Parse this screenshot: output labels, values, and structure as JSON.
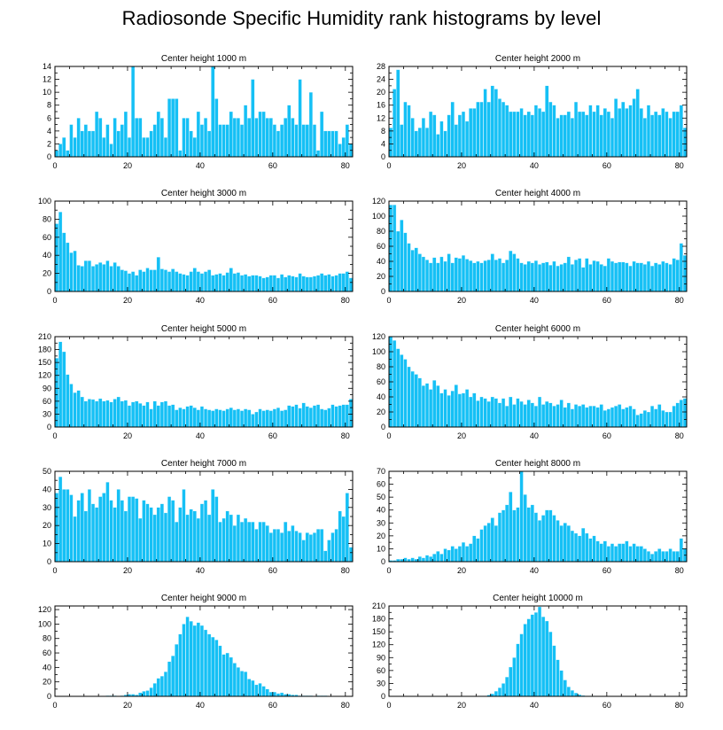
{
  "title": "Radiosonde Specific Humidity rank histograms by level",
  "colors": {
    "bar": "#15c0f5",
    "bar_edge": "#e8f8ff",
    "axis": "#000000"
  },
  "chart_data": [
    {
      "type": "bar",
      "title": "Center height 1000 m",
      "xlim": [
        0,
        82
      ],
      "ylim": [
        0,
        14
      ],
      "xticks": [
        0,
        20,
        40,
        60,
        80
      ],
      "yticks": [
        0,
        2,
        4,
        6,
        8,
        10,
        12,
        14
      ],
      "values": [
        1,
        2,
        3,
        1,
        5,
        3,
        6,
        4,
        5,
        4,
        4,
        7,
        6,
        3,
        5,
        2,
        6,
        4,
        5,
        7,
        3,
        14,
        6,
        6,
        3,
        3,
        4,
        5,
        7,
        6,
        3,
        9,
        9,
        9,
        1,
        6,
        6,
        4,
        3,
        7,
        5,
        6,
        4,
        14,
        9,
        5,
        5,
        5,
        7,
        6,
        6,
        5,
        8,
        6,
        12,
        6,
        7,
        7,
        6,
        6,
        5,
        4,
        5,
        6,
        8,
        6,
        5,
        12,
        5,
        5,
        10,
        5,
        1,
        7,
        4,
        4,
        4,
        4,
        2,
        3,
        5,
        2
      ]
    },
    {
      "type": "bar",
      "title": "Center height 2000 m",
      "xlim": [
        0,
        82
      ],
      "ylim": [
        0,
        28
      ],
      "xticks": [
        0,
        20,
        40,
        60,
        80
      ],
      "yticks": [
        0,
        4,
        8,
        12,
        16,
        20,
        24,
        28
      ],
      "values": [
        9,
        21,
        27,
        10,
        17,
        16,
        12,
        8,
        9,
        12,
        9,
        14,
        13,
        7,
        11,
        8,
        13,
        17,
        10,
        13,
        14,
        11,
        15,
        15,
        17,
        17,
        21,
        17,
        22,
        21,
        18,
        17,
        16,
        14,
        14,
        14,
        15,
        13,
        14,
        13,
        16,
        15,
        14,
        22,
        17,
        16,
        12,
        13,
        13,
        14,
        12,
        17,
        14,
        14,
        13,
        16,
        14,
        16,
        13,
        15,
        14,
        12,
        18,
        15,
        17,
        15,
        16,
        18,
        21,
        15,
        12,
        16,
        13,
        14,
        13,
        15,
        14,
        12,
        14,
        14,
        16,
        9
      ]
    },
    {
      "type": "bar",
      "title": "Center height 3000 m",
      "xlim": [
        0,
        82
      ],
      "ylim": [
        0,
        100
      ],
      "xticks": [
        0,
        20,
        40,
        60,
        80
      ],
      "yticks": [
        0,
        20,
        40,
        60,
        80,
        100
      ],
      "values": [
        75,
        88,
        65,
        54,
        43,
        45,
        29,
        28,
        34,
        34,
        28,
        30,
        32,
        30,
        34,
        28,
        32,
        28,
        24,
        23,
        20,
        22,
        18,
        24,
        22,
        26,
        24,
        24,
        38,
        25,
        24,
        22,
        25,
        22,
        20,
        19,
        18,
        22,
        26,
        22,
        20,
        22,
        24,
        18,
        19,
        20,
        18,
        21,
        26,
        20,
        21,
        18,
        19,
        17,
        18,
        18,
        17,
        15,
        16,
        18,
        18,
        15,
        19,
        16,
        18,
        17,
        16,
        20,
        17,
        16,
        16,
        17,
        18,
        20,
        18,
        19,
        17,
        18,
        20,
        20,
        22,
        15
      ]
    },
    {
      "type": "bar",
      "title": "Center height 4000 m",
      "xlim": [
        0,
        82
      ],
      "ylim": [
        0,
        120
      ],
      "xticks": [
        0,
        20,
        40,
        60,
        80
      ],
      "yticks": [
        0,
        20,
        40,
        60,
        80,
        100,
        120
      ],
      "values": [
        115,
        115,
        80,
        95,
        78,
        64,
        55,
        58,
        50,
        46,
        42,
        38,
        45,
        38,
        46,
        40,
        50,
        38,
        45,
        44,
        48,
        43,
        41,
        38,
        40,
        38,
        41,
        42,
        50,
        42,
        44,
        38,
        42,
        54,
        50,
        44,
        38,
        36,
        40,
        38,
        41,
        36,
        38,
        39,
        35,
        40,
        34,
        36,
        38,
        46,
        36,
        42,
        44,
        32,
        44,
        36,
        41,
        40,
        36,
        34,
        44,
        40,
        38,
        39,
        39,
        38,
        34,
        40,
        38,
        38,
        36,
        40,
        34,
        38,
        36,
        40,
        38,
        36,
        44,
        42,
        64,
        48
      ]
    },
    {
      "type": "bar",
      "title": "Center height 5000 m",
      "xlim": [
        0,
        82
      ],
      "ylim": [
        0,
        210
      ],
      "xticks": [
        0,
        20,
        40,
        60,
        80
      ],
      "yticks": [
        0,
        30,
        60,
        90,
        120,
        150,
        180,
        210
      ],
      "values": [
        160,
        198,
        175,
        122,
        100,
        80,
        85,
        70,
        60,
        65,
        64,
        60,
        66,
        60,
        62,
        58,
        65,
        70,
        60,
        62,
        50,
        58,
        60,
        55,
        50,
        58,
        42,
        60,
        50,
        58,
        60,
        50,
        52,
        40,
        45,
        42,
        48,
        50,
        45,
        40,
        48,
        42,
        40,
        38,
        42,
        40,
        38,
        42,
        45,
        40,
        42,
        38,
        42,
        40,
        30,
        35,
        42,
        38,
        40,
        38,
        42,
        45,
        38,
        40,
        50,
        48,
        52,
        44,
        56,
        48,
        45,
        50,
        52,
        42,
        40,
        44,
        52,
        48,
        50,
        52,
        52,
        65
      ]
    },
    {
      "type": "bar",
      "title": "Center height 6000 m",
      "xlim": [
        0,
        82
      ],
      "ylim": [
        0,
        120
      ],
      "xticks": [
        0,
        20,
        40,
        60,
        80
      ],
      "yticks": [
        0,
        20,
        40,
        60,
        80,
        100,
        120
      ],
      "values": [
        120,
        115,
        104,
        96,
        90,
        80,
        74,
        70,
        65,
        55,
        58,
        50,
        62,
        55,
        45,
        50,
        42,
        48,
        56,
        44,
        45,
        50,
        40,
        45,
        35,
        40,
        38,
        34,
        40,
        38,
        32,
        38,
        28,
        40,
        30,
        38,
        34,
        30,
        36,
        32,
        28,
        40,
        30,
        34,
        32,
        28,
        30,
        36,
        26,
        32,
        24,
        30,
        28,
        30,
        26,
        28,
        28,
        26,
        30,
        22,
        24,
        26,
        28,
        30,
        24,
        26,
        28,
        24,
        16,
        18,
        22,
        20,
        28,
        24,
        30,
        22,
        20,
        20,
        28,
        32,
        36,
        38
      ]
    },
    {
      "type": "bar",
      "title": "Center height 7000 m",
      "xlim": [
        0,
        82
      ],
      "ylim": [
        0,
        50
      ],
      "xticks": [
        0,
        20,
        40,
        60,
        80
      ],
      "yticks": [
        0,
        10,
        20,
        30,
        40,
        50
      ],
      "values": [
        38,
        47,
        40,
        40,
        37,
        25,
        34,
        38,
        28,
        40,
        32,
        30,
        36,
        38,
        44,
        34,
        30,
        40,
        34,
        28,
        36,
        36,
        35,
        24,
        34,
        32,
        30,
        26,
        30,
        32,
        27,
        36,
        34,
        22,
        30,
        40,
        26,
        29,
        28,
        24,
        32,
        34,
        26,
        40,
        36,
        22,
        24,
        28,
        26,
        20,
        26,
        22,
        24,
        22,
        22,
        18,
        22,
        22,
        20,
        16,
        18,
        18,
        16,
        22,
        17,
        20,
        17,
        16,
        12,
        16,
        15,
        16,
        18,
        18,
        6,
        12,
        16,
        18,
        28,
        25,
        38,
        8
      ]
    },
    {
      "type": "bar",
      "title": "Center height 8000 m",
      "xlim": [
        0,
        82
      ],
      "ylim": [
        0,
        70
      ],
      "xticks": [
        0,
        20,
        40,
        60,
        80
      ],
      "yticks": [
        0,
        10,
        20,
        30,
        40,
        50,
        60,
        70
      ],
      "values": [
        1,
        1,
        2,
        2,
        3,
        2,
        3,
        2,
        4,
        3,
        5,
        4,
        6,
        8,
        6,
        10,
        9,
        12,
        10,
        12,
        15,
        12,
        14,
        20,
        18,
        25,
        28,
        30,
        34,
        28,
        38,
        40,
        44,
        54,
        40,
        42,
        70,
        52,
        42,
        44,
        38,
        32,
        36,
        40,
        40,
        36,
        32,
        28,
        30,
        28,
        24,
        22,
        20,
        26,
        22,
        18,
        20,
        16,
        14,
        16,
        12,
        14,
        12,
        14,
        14,
        16,
        12,
        14,
        12,
        12,
        10,
        8,
        6,
        8,
        10,
        8,
        8,
        10,
        8,
        8,
        18,
        10
      ]
    },
    {
      "type": "bar",
      "title": "Center height 9000 m",
      "xlim": [
        0,
        82
      ],
      "ylim": [
        0,
        125
      ],
      "xticks": [
        0,
        20,
        40,
        60,
        80
      ],
      "yticks": [
        0,
        20,
        40,
        60,
        80,
        100,
        120
      ],
      "values": [
        0,
        0,
        0,
        0,
        0,
        0,
        0,
        0,
        0,
        0,
        0,
        0,
        0,
        0,
        1,
        1,
        1,
        0,
        1,
        2,
        3,
        3,
        2,
        5,
        7,
        8,
        12,
        18,
        25,
        28,
        34,
        48,
        56,
        72,
        86,
        100,
        110,
        104,
        98,
        102,
        98,
        92,
        86,
        82,
        78,
        70,
        58,
        60,
        54,
        46,
        40,
        35,
        34,
        24,
        22,
        16,
        18,
        14,
        10,
        6,
        6,
        4,
        5,
        3,
        3,
        2,
        2,
        1,
        1,
        1,
        1,
        0,
        1,
        1,
        1,
        0,
        0,
        0,
        0,
        0,
        0,
        0
      ]
    },
    {
      "type": "bar",
      "title": "Center height 10000 m",
      "xlim": [
        0,
        82
      ],
      "ylim": [
        0,
        210
      ],
      "xticks": [
        0,
        20,
        40,
        60,
        80
      ],
      "yticks": [
        0,
        30,
        60,
        90,
        120,
        150,
        180,
        210
      ],
      "values": [
        0,
        0,
        0,
        0,
        0,
        0,
        0,
        0,
        0,
        0,
        0,
        0,
        0,
        0,
        0,
        0,
        0,
        0,
        0,
        0,
        0,
        0,
        0,
        0,
        0,
        1,
        1,
        3,
        6,
        12,
        20,
        30,
        45,
        68,
        90,
        122,
        145,
        168,
        180,
        190,
        195,
        208,
        185,
        175,
        150,
        118,
        85,
        60,
        38,
        22,
        14,
        8,
        4,
        2,
        1,
        1,
        1,
        0,
        0,
        0,
        0,
        0,
        0,
        0,
        0,
        0,
        0,
        0,
        0,
        0,
        0,
        0,
        0,
        0,
        0,
        0,
        0,
        0,
        0,
        0,
        0,
        0
      ]
    }
  ]
}
